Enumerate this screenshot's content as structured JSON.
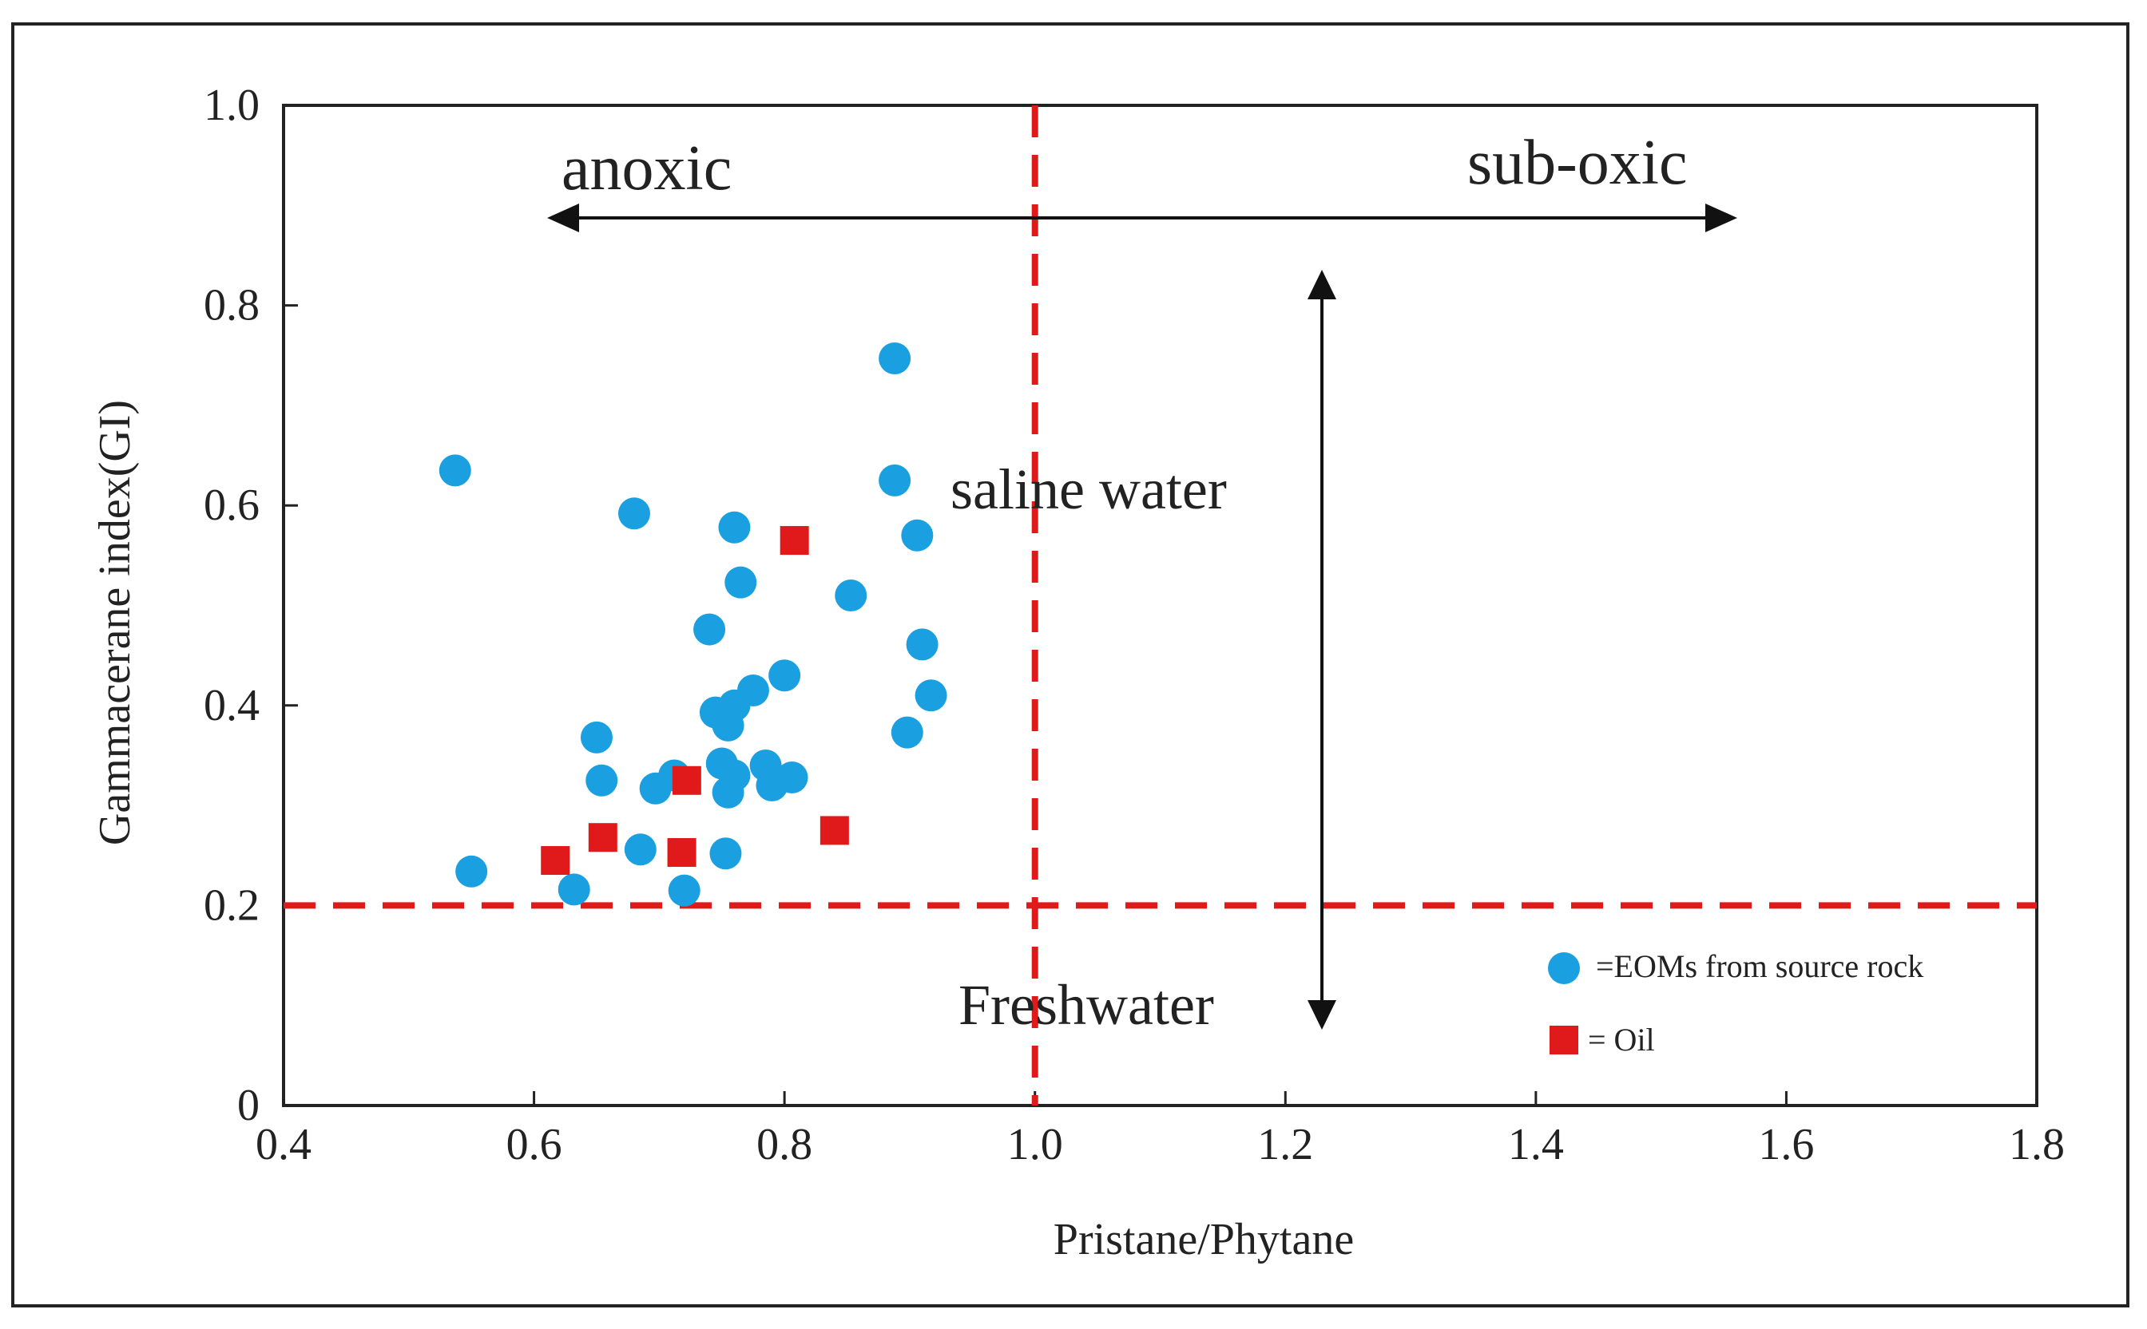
{
  "chart_data": {
    "type": "scatter",
    "xlabel": "Pristane/Phytane",
    "ylabel": "Gammacerane  index(GI)",
    "xlim": [
      0.4,
      1.8
    ],
    "ylim": [
      0,
      1.0
    ],
    "x_ticks": [
      0.4,
      0.6,
      0.8,
      1.0,
      1.2,
      1.4,
      1.6,
      1.8
    ],
    "x_tick_labels": [
      "0.4",
      "0.6",
      "0.8",
      "1.0",
      "1.2",
      "1.4",
      "1.6",
      "1.8"
    ],
    "y_ticks": [
      0,
      0.2,
      0.4,
      0.6,
      0.8,
      1.0
    ],
    "y_tick_labels": [
      "0",
      "0.2",
      "0.4",
      "0.6",
      "0.8",
      "1.0"
    ],
    "reference_lines": [
      {
        "orientation": "vertical",
        "value": 1.0,
        "style": "dashed",
        "color": "#e01a1a"
      },
      {
        "orientation": "horizontal",
        "value": 0.2,
        "style": "dashed",
        "color": "#e01a1a"
      }
    ],
    "annotations": {
      "anoxic": "anoxic",
      "suboxic": "sub-oxic",
      "saline": "saline water",
      "fresh": "Freshwater"
    },
    "series": [
      {
        "name": "=EOMs from source rock",
        "marker": "circle",
        "color": "#1aa0e0",
        "points": [
          [
            0.537,
            0.635
          ],
          [
            0.55,
            0.234
          ],
          [
            0.632,
            0.216
          ],
          [
            0.65,
            0.368
          ],
          [
            0.654,
            0.325
          ],
          [
            0.68,
            0.592
          ],
          [
            0.685,
            0.256
          ],
          [
            0.697,
            0.317
          ],
          [
            0.712,
            0.33
          ],
          [
            0.72,
            0.215
          ],
          [
            0.74,
            0.476
          ],
          [
            0.745,
            0.393
          ],
          [
            0.75,
            0.342
          ],
          [
            0.753,
            0.252
          ],
          [
            0.755,
            0.313
          ],
          [
            0.755,
            0.38
          ],
          [
            0.76,
            0.4
          ],
          [
            0.76,
            0.33
          ],
          [
            0.76,
            0.578
          ],
          [
            0.765,
            0.523
          ],
          [
            0.775,
            0.415
          ],
          [
            0.785,
            0.34
          ],
          [
            0.79,
            0.32
          ],
          [
            0.8,
            0.43
          ],
          [
            0.806,
            0.328
          ],
          [
            0.853,
            0.51
          ],
          [
            0.888,
            0.747
          ],
          [
            0.888,
            0.625
          ],
          [
            0.898,
            0.373
          ],
          [
            0.906,
            0.57
          ],
          [
            0.91,
            0.461
          ],
          [
            0.917,
            0.41
          ]
        ]
      },
      {
        "name": "= Oil",
        "marker": "square",
        "color": "#e01a1a",
        "points": [
          [
            0.617,
            0.245
          ],
          [
            0.655,
            0.268
          ],
          [
            0.718,
            0.253
          ],
          [
            0.722,
            0.325
          ],
          [
            0.808,
            0.565
          ],
          [
            0.84,
            0.275
          ]
        ]
      }
    ]
  }
}
